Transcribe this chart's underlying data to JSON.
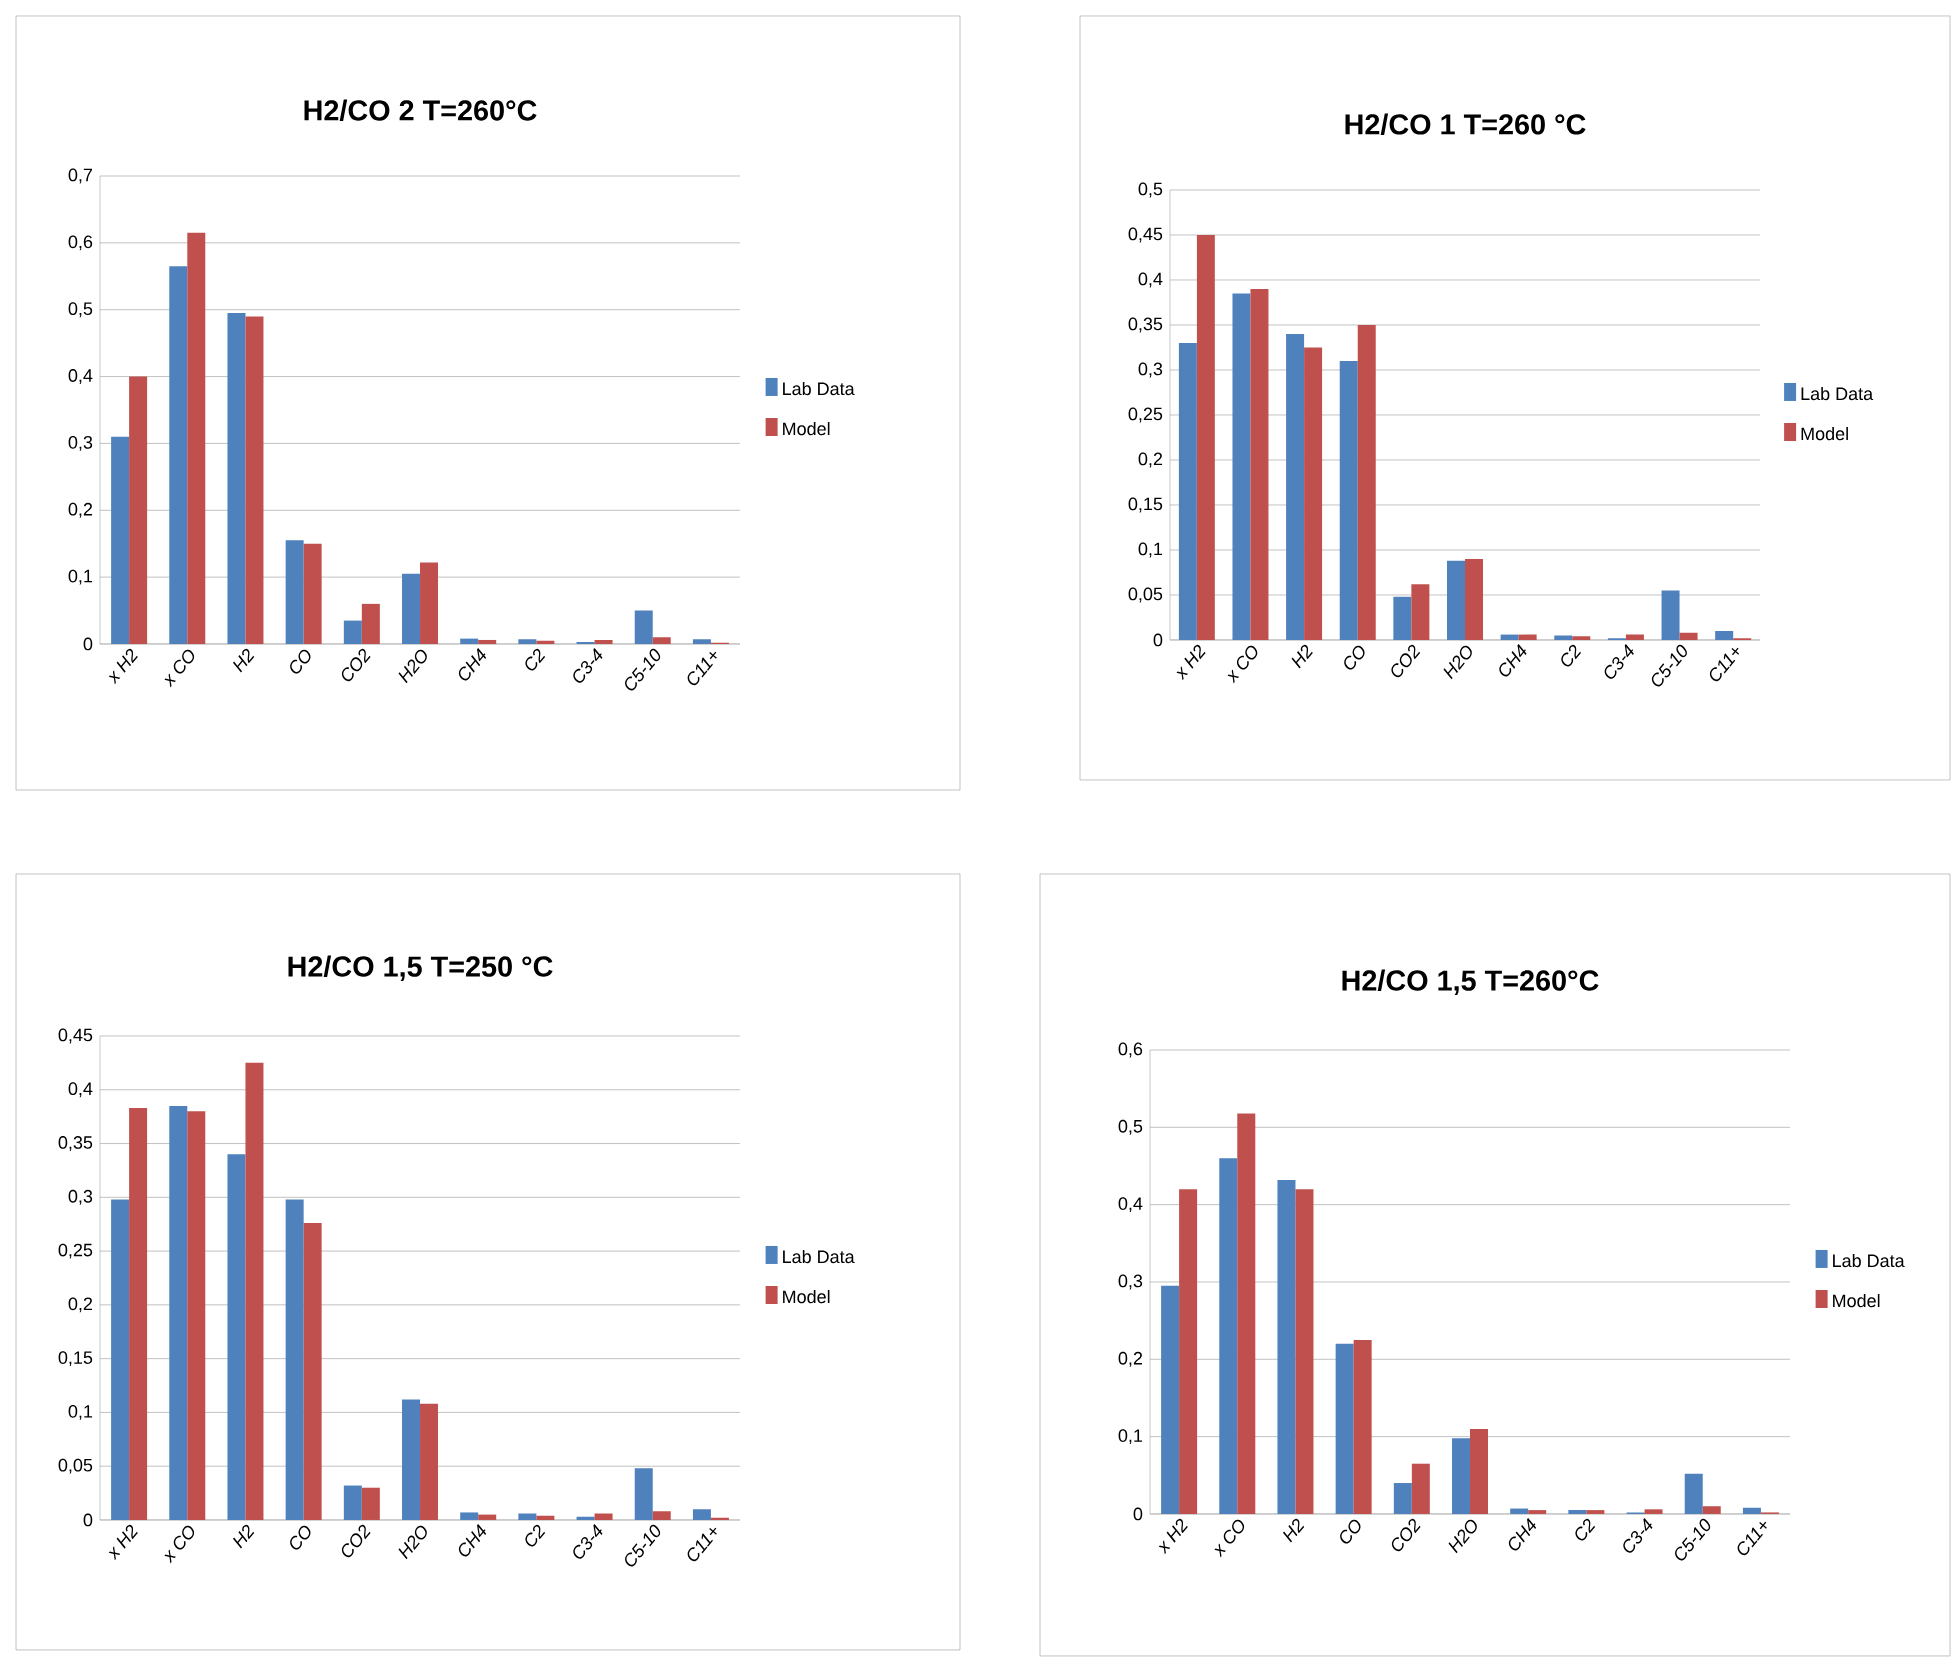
{
  "chart_data": [
    {
      "type": "bar",
      "title": "H2/CO 2   T=260°C",
      "categories": [
        "x H2",
        "x CO",
        "H2",
        "CO",
        "CO2",
        "H2O",
        "CH4",
        "C2",
        "C3-4",
        "C5-10",
        "C11+"
      ],
      "series": [
        {
          "name": "Lab Data",
          "color": "#4f81bd",
          "values": [
            0.31,
            0.565,
            0.495,
            0.155,
            0.035,
            0.105,
            0.008,
            0.007,
            0.003,
            0.05,
            0.007
          ]
        },
        {
          "name": "Model",
          "color": "#c0504d",
          "values": [
            0.4,
            0.615,
            0.49,
            0.15,
            0.06,
            0.122,
            0.006,
            0.005,
            0.006,
            0.01,
            0.002
          ]
        }
      ],
      "ylim": [
        0,
        0.7
      ],
      "yticks": [
        0,
        {
          "value": 0.1,
          "label": "0,1"
        },
        {
          "value": 0.2,
          "label": "0,2"
        },
        {
          "value": 0.3,
          "label": "0,3"
        },
        {
          "value": 0.4,
          "label": "0,4"
        },
        {
          "value": 0.5,
          "label": "0,5"
        },
        {
          "value": 0.6,
          "label": "0,6"
        },
        {
          "value": 0.7,
          "label": "0,7"
        }
      ],
      "grid": "y",
      "legend": "right"
    },
    {
      "type": "bar",
      "title": "H2/CO 1   T=260 °C",
      "categories": [
        "x H2",
        "x CO",
        "H2",
        "CO",
        "CO2",
        "H2O",
        "CH4",
        "C2",
        "C3-4",
        "C5-10",
        "C11+"
      ],
      "series": [
        {
          "name": "Lab Data",
          "color": "#4f81bd",
          "values": [
            0.33,
            0.385,
            0.34,
            0.31,
            0.048,
            0.088,
            0.006,
            0.005,
            0.002,
            0.055,
            0.01
          ]
        },
        {
          "name": "Model",
          "color": "#c0504d",
          "values": [
            0.45,
            0.39,
            0.325,
            0.35,
            0.062,
            0.09,
            0.006,
            0.004,
            0.006,
            0.008,
            0.002
          ]
        }
      ],
      "ylim": [
        0,
        0.5
      ],
      "yticks": [
        0,
        {
          "value": 0.05,
          "label": "0,05"
        },
        {
          "value": 0.1,
          "label": "0,1"
        },
        {
          "value": 0.15,
          "label": "0,15"
        },
        {
          "value": 0.2,
          "label": "0,2"
        },
        {
          "value": 0.25,
          "label": "0,25"
        },
        {
          "value": 0.3,
          "label": "0,3"
        },
        {
          "value": 0.35,
          "label": "0,35"
        },
        {
          "value": 0.4,
          "label": "0,4"
        },
        {
          "value": 0.45,
          "label": "0,45"
        },
        {
          "value": 0.5,
          "label": "0,5"
        }
      ],
      "grid": "y",
      "legend": "right"
    },
    {
      "type": "bar",
      "title": "H2/CO 1,5   T=250 °C",
      "categories": [
        "x H2",
        "x CO",
        "H2",
        "CO",
        "CO2",
        "H2O",
        "CH4",
        "C2",
        "C3-4",
        "C5-10",
        "C11+"
      ],
      "series": [
        {
          "name": "Lab Data",
          "color": "#4f81bd",
          "values": [
            0.298,
            0.385,
            0.34,
            0.298,
            0.032,
            0.112,
            0.007,
            0.006,
            0.003,
            0.048,
            0.01
          ]
        },
        {
          "name": "Model",
          "color": "#c0504d",
          "values": [
            0.383,
            0.38,
            0.425,
            0.276,
            0.03,
            0.108,
            0.005,
            0.004,
            0.006,
            0.008,
            0.002
          ]
        }
      ],
      "ylim": [
        0,
        0.45
      ],
      "yticks": [
        0,
        {
          "value": 0.05,
          "label": "0,05"
        },
        {
          "value": 0.1,
          "label": "0,1"
        },
        {
          "value": 0.15,
          "label": "0,15"
        },
        {
          "value": 0.2,
          "label": "0,2"
        },
        {
          "value": 0.25,
          "label": "0,25"
        },
        {
          "value": 0.3,
          "label": "0,3"
        },
        {
          "value": 0.35,
          "label": "0,35"
        },
        {
          "value": 0.4,
          "label": "0,4"
        },
        {
          "value": 0.45,
          "label": "0,45"
        }
      ],
      "grid": "y",
      "legend": "right"
    },
    {
      "type": "bar",
      "title": "H2/CO 1,5   T=260°C",
      "categories": [
        "x H2",
        "x CO",
        "H2",
        "CO",
        "CO2",
        "H2O",
        "CH4",
        "C2",
        "C3-4",
        "C5-10",
        "C11+"
      ],
      "series": [
        {
          "name": "Lab Data",
          "color": "#4f81bd",
          "values": [
            0.295,
            0.46,
            0.432,
            0.22,
            0.04,
            0.098,
            0.007,
            0.005,
            0.002,
            0.052,
            0.008
          ]
        },
        {
          "name": "Model",
          "color": "#c0504d",
          "values": [
            0.42,
            0.518,
            0.42,
            0.225,
            0.065,
            0.11,
            0.005,
            0.005,
            0.006,
            0.01,
            0.002
          ]
        }
      ],
      "ylim": [
        0,
        0.6
      ],
      "yticks": [
        0,
        {
          "value": 0.1,
          "label": "0,1"
        },
        {
          "value": 0.2,
          "label": "0,2"
        },
        {
          "value": 0.3,
          "label": "0,3"
        },
        {
          "value": 0.4,
          "label": "0,4"
        },
        {
          "value": 0.5,
          "label": "0,5"
        },
        {
          "value": 0.6,
          "label": "0,6"
        }
      ],
      "grid": "y",
      "legend": "right"
    }
  ]
}
